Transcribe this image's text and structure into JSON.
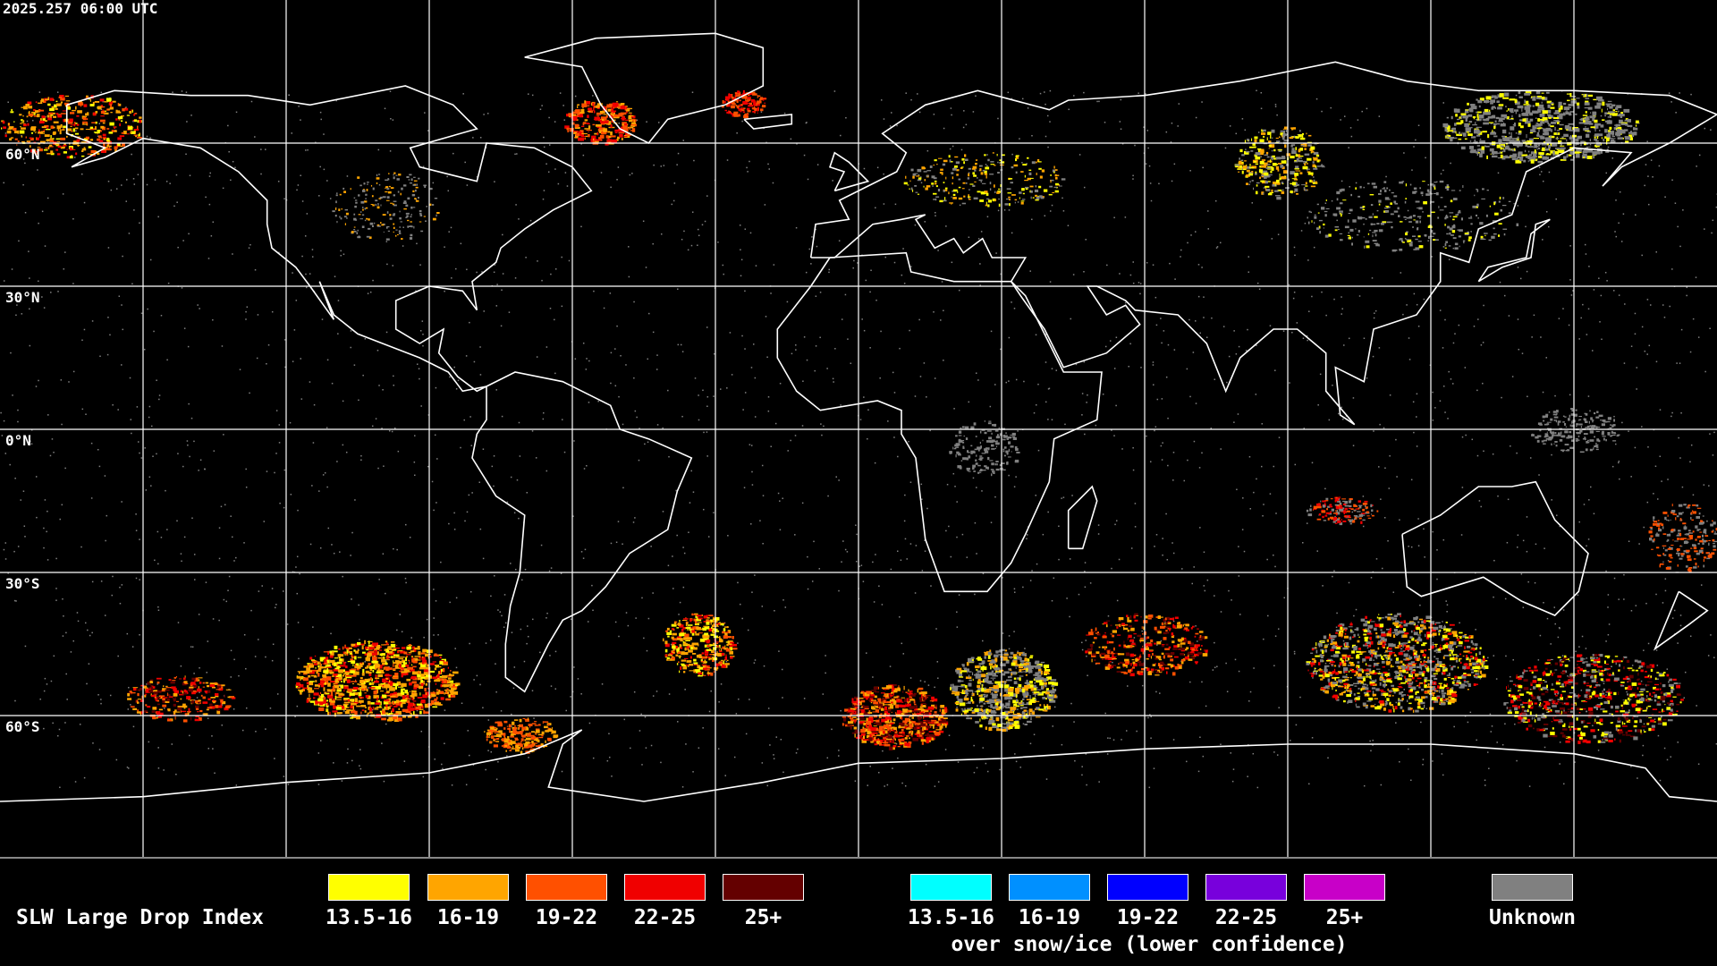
{
  "timestamp": "2025.257 06:00 UTC",
  "lat_labels": [
    "60°N",
    "30°N",
    "0°N",
    "30°S",
    "60°S"
  ],
  "legend": {
    "title": "SLW Large Drop Index",
    "main": [
      {
        "label": "13.5-16",
        "color": "#ffff00"
      },
      {
        "label": "16-19",
        "color": "#ffa500"
      },
      {
        "label": "19-22",
        "color": "#ff5000"
      },
      {
        "label": "22-25",
        "color": "#f00000"
      },
      {
        "label": "25+",
        "color": "#640000"
      }
    ],
    "snow": [
      {
        "label": "13.5-16",
        "color": "#00ffff"
      },
      {
        "label": "16-19",
        "color": "#0090ff"
      },
      {
        "label": "19-22",
        "color": "#0000ff"
      },
      {
        "label": "22-25",
        "color": "#7800dc"
      },
      {
        "label": "25+",
        "color": "#c800c8"
      }
    ],
    "snow_caption": "over snow/ice (lower confidence)",
    "unknown": {
      "label": "Unknown",
      "color": "#808080"
    }
  }
}
